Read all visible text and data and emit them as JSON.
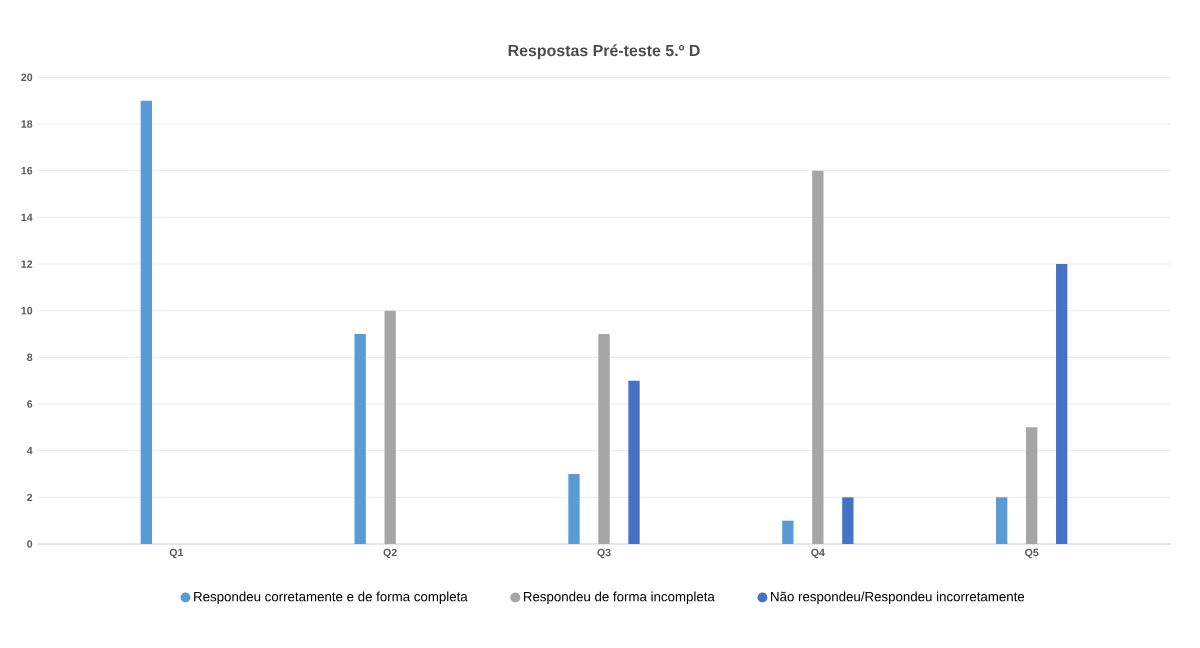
{
  "chart_data": {
    "type": "bar",
    "title": "Respostas Pré-teste 5.º D",
    "categories": [
      "Q1",
      "Q2",
      "Q3",
      "Q4",
      "Q5"
    ],
    "series": [
      {
        "name": "Respondeu corretamente e de forma completa",
        "color": "#5b9bd5",
        "values": [
          19,
          9,
          3,
          1,
          2
        ]
      },
      {
        "name": "Respondeu de forma incompleta",
        "color": "#a5a5a5",
        "values": [
          0,
          10,
          9,
          16,
          5
        ]
      },
      {
        "name": "Não respondeu/Respondeu incorretamente",
        "color": "#4472c4",
        "values": [
          0,
          0,
          7,
          2,
          12
        ]
      }
    ],
    "ylim": [
      0,
      20
    ],
    "yticks": [
      0,
      2,
      4,
      6,
      8,
      10,
      12,
      14,
      16,
      18,
      20
    ],
    "grid": "y",
    "legend": "bottom"
  }
}
